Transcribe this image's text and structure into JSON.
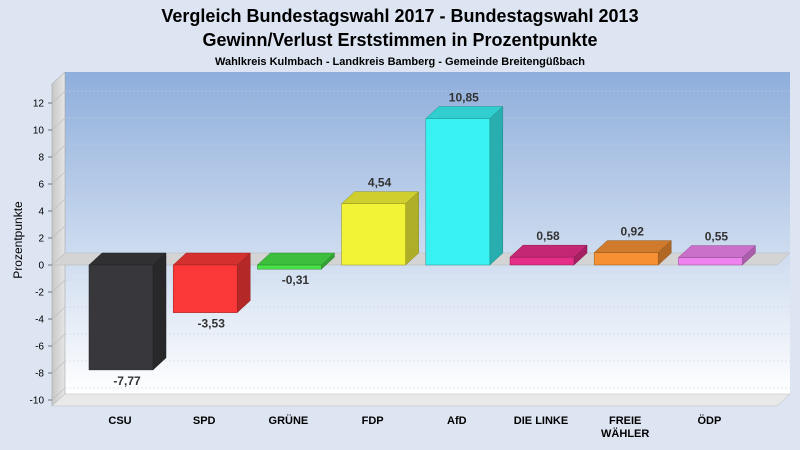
{
  "chart_data": {
    "type": "bar",
    "title": "Vergleich Bundestagswahl 2017 - Bundestagswahl 2013",
    "subtitle": "Gewinn/Verlust Erststimmen in Prozentpunkte",
    "caption": "Wahlkreis Kulmbach - Landkreis Bamberg - Gemeinde Breitengüßbach",
    "ylabel": "Prozentpunkte",
    "xlabel": "",
    "ylim": [
      -10,
      13
    ],
    "yticks": [
      -10,
      -8,
      -6,
      -4,
      -2,
      0,
      2,
      4,
      6,
      8,
      10,
      12
    ],
    "grid": true,
    "categories": [
      [
        "CSU"
      ],
      [
        "SPD"
      ],
      [
        "GRÜNE"
      ],
      [
        "FDP"
      ],
      [
        "AfD"
      ],
      [
        "DIE LINKE"
      ],
      [
        "FREIE",
        "WÄHLER"
      ],
      [
        "ÖDP"
      ]
    ],
    "values": [
      -7.77,
      -3.53,
      -0.31,
      4.54,
      10.85,
      0.58,
      0.92,
      0.55
    ],
    "value_labels": [
      "-7,77",
      "-3,53",
      "-0,31",
      "4,54",
      "10,85",
      "0,58",
      "0,92",
      "0,55"
    ],
    "colors": [
      "#38383c",
      "#fb3838",
      "#48e148",
      "#f2f236",
      "#38f2f2",
      "#e62e88",
      "#f59132",
      "#ee82ee"
    ]
  }
}
